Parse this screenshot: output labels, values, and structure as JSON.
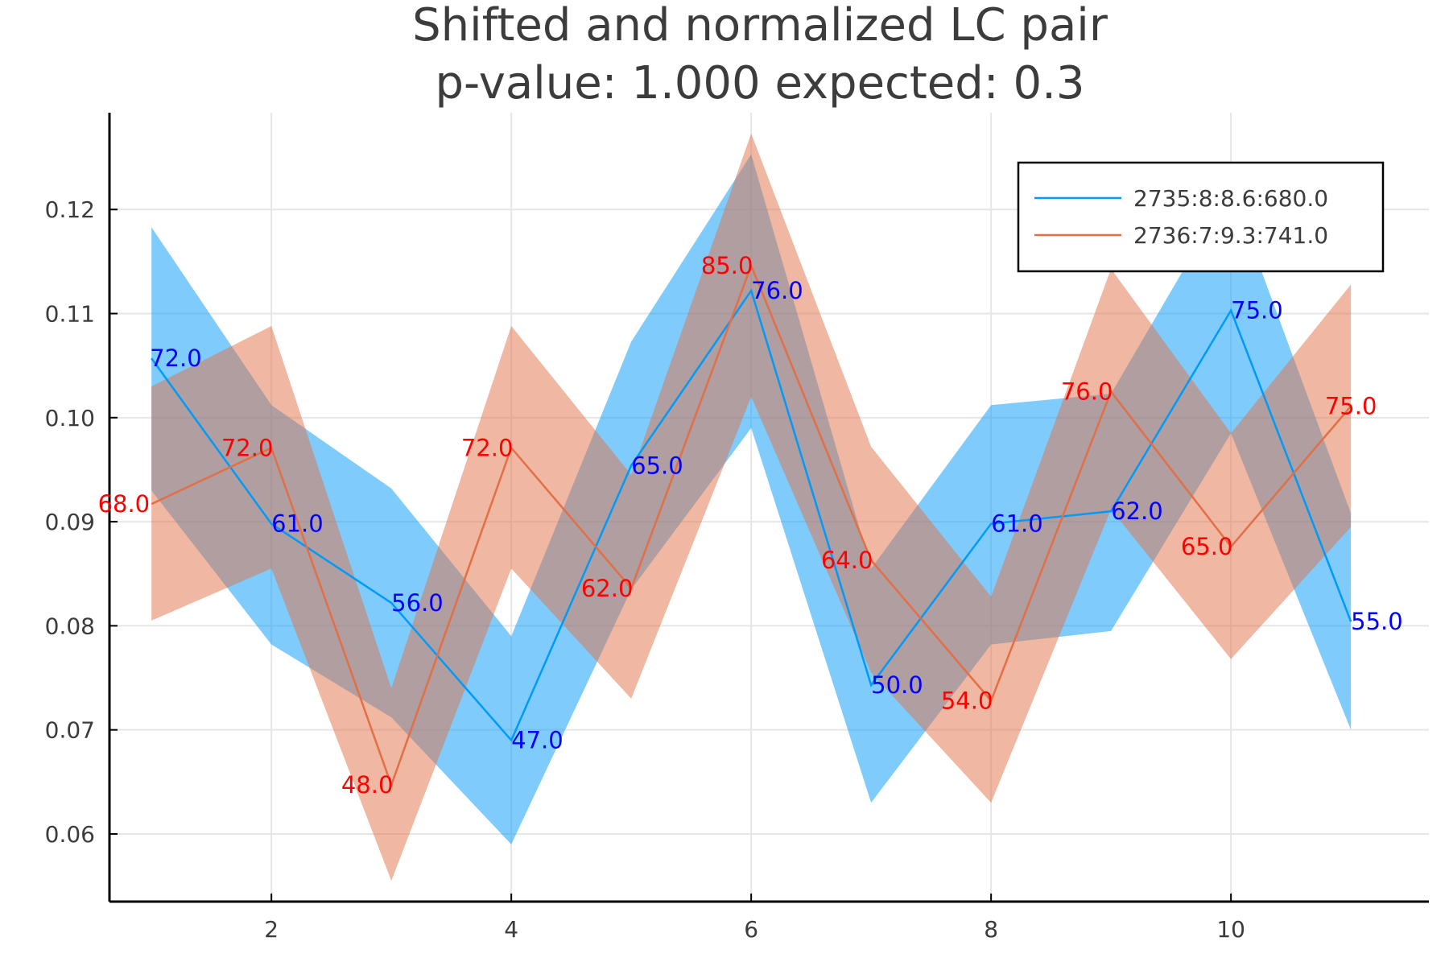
{
  "chart_data": {
    "type": "line",
    "title": "Shifted and normalized LC pair",
    "subtitle": "p-value: 1.000 expected: 0.3",
    "xlabel": "",
    "ylabel": "",
    "xlim": [
      0.65,
      11.65
    ],
    "ylim": [
      0.0535,
      0.1293
    ],
    "x_ticks": [
      2,
      4,
      6,
      8,
      10
    ],
    "y_ticks": [
      0.06,
      0.07,
      0.08,
      0.09,
      0.1,
      0.11,
      0.12
    ],
    "y_tick_labels": [
      "0.06",
      "0.07",
      "0.08",
      "0.09",
      "0.10",
      "0.11",
      "0.12"
    ],
    "grid": true,
    "legend_position": "top-right",
    "x": [
      1,
      2,
      3,
      4,
      5,
      6,
      7,
      8,
      9,
      10,
      11
    ],
    "series": [
      {
        "name": "2735:8:8.6:680.0",
        "color": "#009af9",
        "band_color": "#009af9",
        "label_color": "#0000ff",
        "values": [
          0.1057,
          0.0898,
          0.0822,
          0.069,
          0.0954,
          0.1122,
          0.0743,
          0.0898,
          0.091,
          0.1103,
          0.0804
        ],
        "lower": [
          0.093,
          0.0782,
          0.0712,
          0.059,
          0.0835,
          0.099,
          0.063,
          0.0782,
          0.0795,
          0.0985,
          0.07
        ],
        "upper": [
          0.1183,
          0.1012,
          0.0932,
          0.079,
          0.1073,
          0.1253,
          0.0855,
          0.1012,
          0.1023,
          0.122,
          0.0908
        ],
        "point_labels": [
          "72.0",
          "61.0",
          "56.0",
          "47.0",
          "65.0",
          "76.0",
          "50.0",
          "61.0",
          "62.0",
          "75.0",
          "55.0"
        ]
      },
      {
        "name": "2736:7:9.3:741.0",
        "color": "#e26f46",
        "band_color": "#e26f46",
        "label_color": "#ff0000",
        "values": [
          0.0917,
          0.0971,
          0.0647,
          0.0971,
          0.0836,
          0.1146,
          0.0863,
          0.0728,
          0.1025,
          0.0876,
          0.1011
        ],
        "lower": [
          0.0805,
          0.0855,
          0.0555,
          0.0855,
          0.073,
          0.102,
          0.0755,
          0.063,
          0.0912,
          0.0768,
          0.0895
        ],
        "upper": [
          0.103,
          0.1088,
          0.074,
          0.1088,
          0.0945,
          0.1273,
          0.0972,
          0.0828,
          0.1143,
          0.0985,
          0.1128
        ],
        "point_labels": [
          "68.0",
          "72.0",
          "48.0",
          "72.0",
          "62.0",
          "85.0",
          "64.0",
          "54.0",
          "76.0",
          "65.0",
          "75.0"
        ]
      }
    ]
  }
}
